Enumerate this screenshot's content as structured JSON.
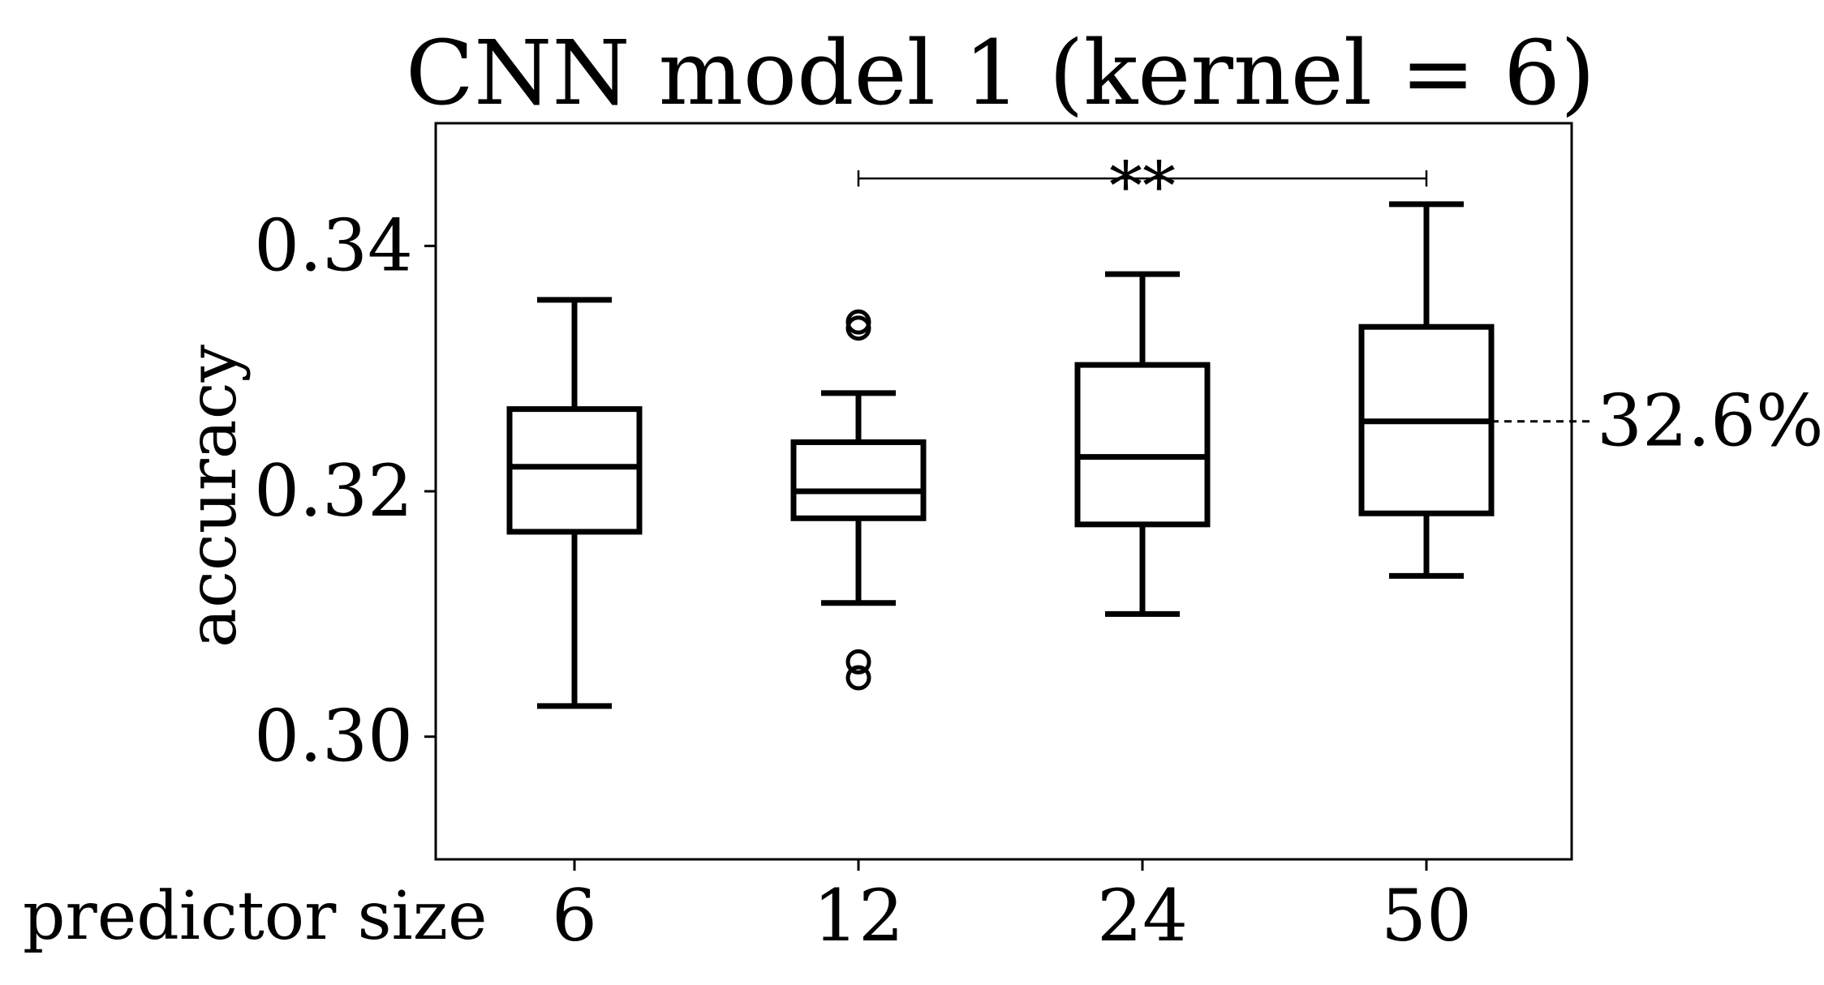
{
  "chart_data": {
    "type": "box",
    "title": "CNN model 1 (kernel = 6)",
    "xlabel": "predictor size",
    "ylabel": "accuracy",
    "ylim": [
      0.29,
      0.35
    ],
    "yticks": [
      0.3,
      0.32,
      0.34
    ],
    "ytick_labels": [
      "0.30",
      "0.32",
      "0.34"
    ],
    "categories": [
      "6",
      "12",
      "24",
      "50"
    ],
    "boxes": [
      {
        "category": "6",
        "whislo": 0.3025,
        "q1": 0.3167,
        "med": 0.322,
        "q3": 0.3267,
        "whishi": 0.3356,
        "fliers": []
      },
      {
        "category": "12",
        "whislo": 0.3109,
        "q1": 0.3178,
        "med": 0.32,
        "q3": 0.324,
        "whishi": 0.328,
        "fliers": [
          0.3338,
          0.3333,
          0.3061,
          0.3048
        ]
      },
      {
        "category": "24",
        "whislo": 0.31,
        "q1": 0.3173,
        "med": 0.3228,
        "q3": 0.3303,
        "whishi": 0.3377,
        "fliers": []
      },
      {
        "category": "50",
        "whislo": 0.3131,
        "q1": 0.3182,
        "med": 0.3257,
        "q3": 0.3334,
        "whishi": 0.3434,
        "fliers": []
      }
    ],
    "significance": {
      "from": "12",
      "to": "50",
      "y": 0.3455,
      "label": "**"
    },
    "annotation": {
      "category": "50",
      "value": 0.3257,
      "label": "32.6%"
    },
    "grid": false
  }
}
